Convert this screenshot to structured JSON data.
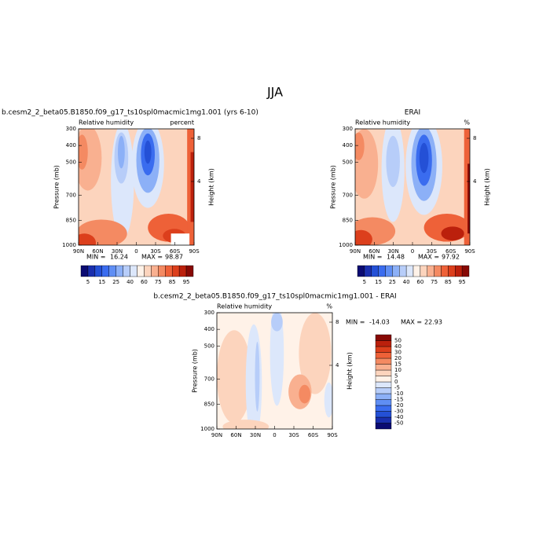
{
  "title": "JJA",
  "chart_data": [
    {
      "type": "contour",
      "title": "b.cesm2_2_beta05.B1850.f09_g17_ts10spl0macmic1mg1.001 (yrs 6-10)",
      "subtitle": "Relative humidity",
      "units": "percent",
      "ylabel": "Pressure (mb)",
      "y2label": "Height (km)",
      "xlim": [
        90,
        -90
      ],
      "xticks": [
        {
          "value": 90,
          "label": "90N"
        },
        {
          "value": 60,
          "label": "60N"
        },
        {
          "value": 30,
          "label": "30N"
        },
        0,
        {
          "value": -30,
          "label": "30S"
        },
        {
          "value": -60,
          "label": "60S"
        },
        {
          "value": -90,
          "label": "90S"
        }
      ],
      "ylim": [
        300,
        1000
      ],
      "yticks": [
        300,
        400,
        500,
        700,
        850,
        1000
      ],
      "y2ticks": [
        8,
        4
      ],
      "min_label": "MIN =",
      "min": 16.24,
      "max_label": "MAX =",
      "max": 98.87,
      "colorbar_levels": [
        5,
        10,
        15,
        20,
        25,
        30,
        40,
        50,
        60,
        70,
        75,
        80,
        85,
        90,
        95
      ],
      "colorbar_ticks": [
        5,
        15,
        25,
        40,
        60,
        75,
        85,
        95
      ],
      "colors": [
        "#0b0b72",
        "#1a2fae",
        "#2450d6",
        "#3a6cef",
        "#5f8ef4",
        "#8cb0f7",
        "#b7cdf9",
        "#dce7fb",
        "#fff2e8",
        "#fcd4bd",
        "#f9b090",
        "#f48a62",
        "#ee6138",
        "#dc3f1c",
        "#bb200c",
        "#870905"
      ]
    },
    {
      "type": "contour",
      "title": "ERAI",
      "subtitle": "Relative humidity",
      "units": "%",
      "ylabel": "Pressure (mb)",
      "y2label": "Height (km)",
      "xlim": [
        90,
        -90
      ],
      "xticks": [
        {
          "value": 90,
          "label": "90N"
        },
        {
          "value": 60,
          "label": "60N"
        },
        {
          "value": 30,
          "label": "30N"
        },
        0,
        {
          "value": -30,
          "label": "30S"
        },
        {
          "value": -60,
          "label": "60S"
        },
        {
          "value": -90,
          "label": "90S"
        }
      ],
      "ylim": [
        300,
        1000
      ],
      "yticks": [
        300,
        400,
        500,
        700,
        850,
        1000
      ],
      "y2ticks": [
        8,
        4
      ],
      "min_label": "MIN =",
      "min": 14.48,
      "max_label": "MAX =",
      "max": 97.92,
      "colorbar_levels": [
        5,
        10,
        15,
        20,
        25,
        30,
        40,
        50,
        60,
        70,
        75,
        80,
        85,
        90,
        95
      ],
      "colorbar_ticks": [
        5,
        15,
        25,
        40,
        60,
        75,
        85,
        95
      ],
      "colors": [
        "#0b0b72",
        "#1a2fae",
        "#2450d6",
        "#3a6cef",
        "#5f8ef4",
        "#8cb0f7",
        "#b7cdf9",
        "#dce7fb",
        "#fff2e8",
        "#fcd4bd",
        "#f9b090",
        "#f48a62",
        "#ee6138",
        "#dc3f1c",
        "#bb200c",
        "#870905"
      ]
    },
    {
      "type": "contour",
      "title": "b.cesm2_2_beta05.B1850.f09_g17_ts10spl0macmic1mg1.001 - ERAI",
      "subtitle": "Relative humidity",
      "units": "%",
      "ylabel": "Pressure (mb)",
      "y2label": "Height (km)",
      "xlim": [
        90,
        -90
      ],
      "xticks": [
        {
          "value": 90,
          "label": "90N"
        },
        {
          "value": 60,
          "label": "60N"
        },
        {
          "value": 30,
          "label": "30N"
        },
        0,
        {
          "value": -30,
          "label": "30S"
        },
        {
          "value": -60,
          "label": "60S"
        },
        {
          "value": -90,
          "label": "90S"
        }
      ],
      "ylim": [
        300,
        1000
      ],
      "yticks": [
        300,
        400,
        500,
        700,
        850,
        1000
      ],
      "y2ticks": [
        8,
        4
      ],
      "min_label": "MIN =",
      "min": -14.03,
      "max_label": "MAX =",
      "max": 22.93,
      "colorbar_levels": [
        -50,
        -40,
        -30,
        -20,
        -15,
        -10,
        -5,
        0,
        5,
        10,
        15,
        20,
        30,
        40,
        50
      ],
      "colorbar_ticks": [
        -50,
        -40,
        -30,
        -20,
        -15,
        -10,
        -5,
        0,
        5,
        10,
        15,
        20,
        30,
        40,
        50
      ],
      "colors": [
        "#0b0b72",
        "#1a2fae",
        "#2450d6",
        "#3a6cef",
        "#5f8ef4",
        "#8cb0f7",
        "#b7cdf9",
        "#dce7fb",
        "#fff2e8",
        "#fcd4bd",
        "#f9b090",
        "#f48a62",
        "#ee6138",
        "#dc3f1c",
        "#bb200c",
        "#870905"
      ]
    }
  ]
}
